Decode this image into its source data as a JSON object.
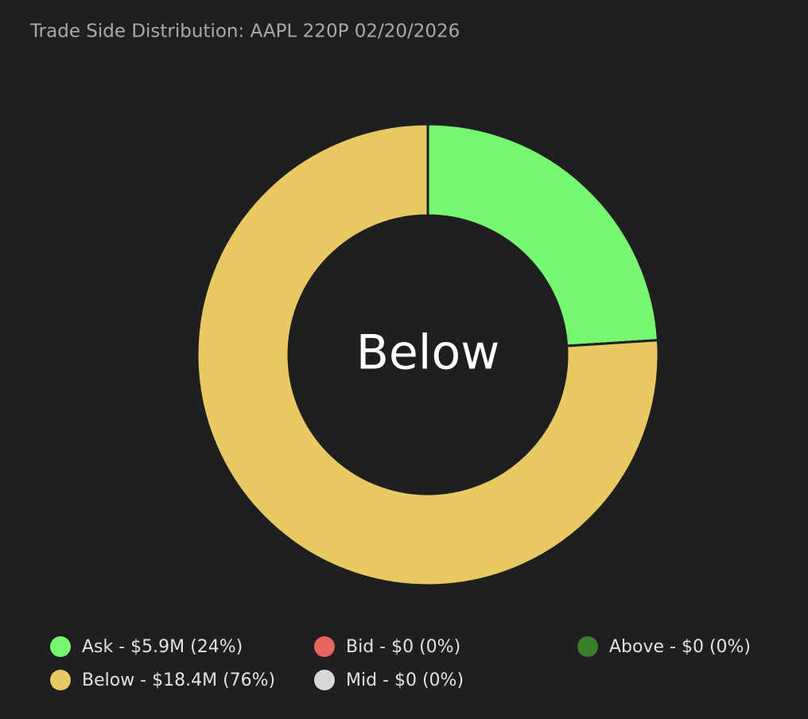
{
  "chart_data": {
    "type": "donut",
    "title": "Trade Side Distribution: AAPL 220P 02/20/2026",
    "center_label": "Below",
    "categories": [
      "Ask - $5.9M (24%)",
      "Bid - $0 (0%)",
      "Above - $0 (0%)",
      "Below - $18.4M (76%)",
      "Mid - $0 (0%)"
    ],
    "values": [
      24,
      0,
      0,
      76,
      0
    ],
    "colors": [
      "#76f76f",
      "#e8655f",
      "#3a7f2a",
      "#e9c962",
      "#d9d9d9"
    ]
  }
}
